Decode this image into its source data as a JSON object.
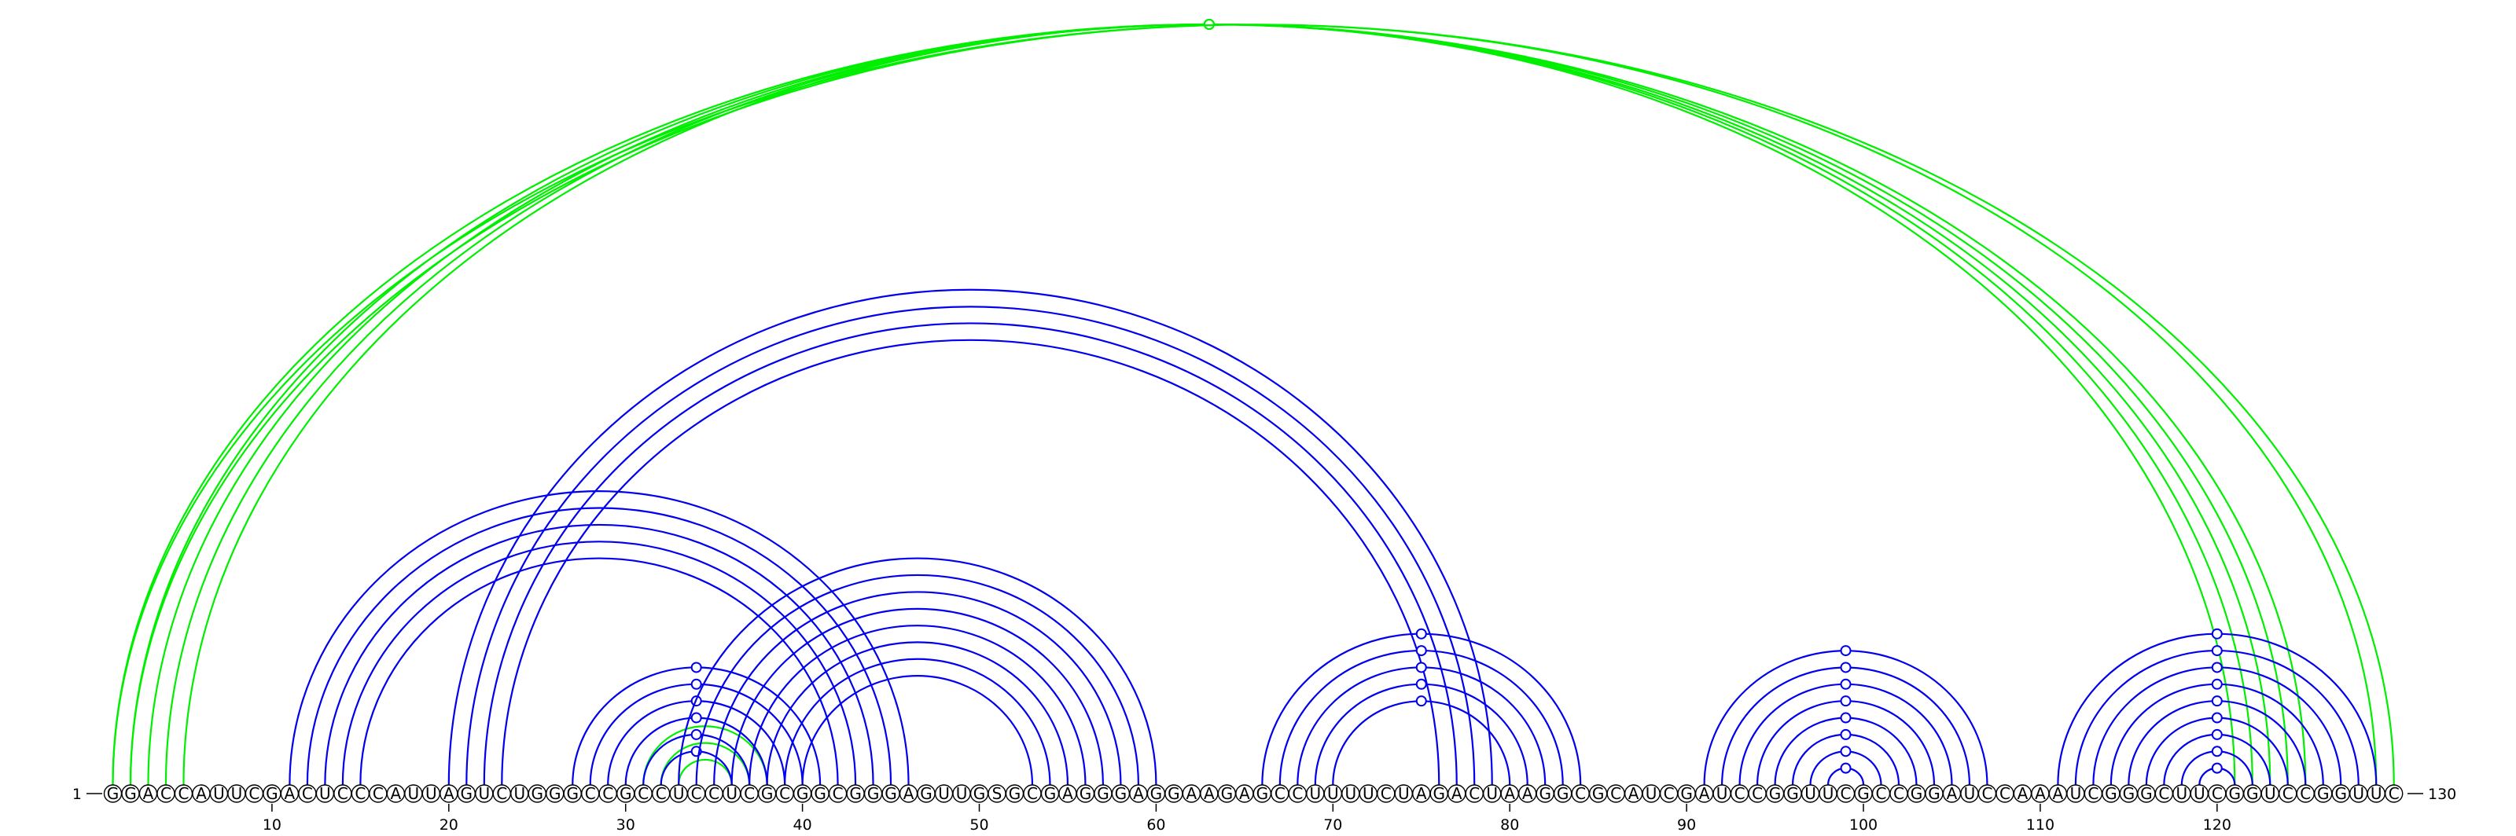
{
  "sequence": "GGACCAUUCGACUCCCAUUAGUCUGGGCCGCCUCCUCGCGGCGGGAGUUGSGCGAGGGAGGAAGAGCCUUUUCUAGACUAAGGCGCAUCGAUCCGGUUCGCCGGAUCCAAAUCGGGCUUCGGUCCGGUUC",
  "start_label": "1",
  "end_label": "130",
  "ticks": [
    10,
    20,
    30,
    40,
    50,
    60,
    70,
    80,
    90,
    100,
    110,
    120
  ],
  "colors": {
    "pairs_a": "#0000ee",
    "pairs_b": "#00ee00"
  },
  "arcs": [
    {
      "color": "pairs_b",
      "pairs": [
        [
          1,
          125
        ],
        [
          2,
          124
        ],
        [
          3,
          123
        ],
        [
          4,
          122
        ],
        [
          5,
          121
        ],
        [
          38,
          31
        ],
        [
          37,
          32
        ],
        [
          36,
          33
        ]
      ]
    },
    {
      "color": "pairs_b",
      "pairs": [
        [
          1,
          130
        ],
        [
          2,
          129
        ]
      ]
    },
    {
      "color": "pairs_a",
      "pairs": [
        [
          11,
          46
        ],
        [
          12,
          45
        ],
        [
          13,
          44
        ],
        [
          14,
          43
        ],
        [
          15,
          42
        ]
      ]
    },
    {
      "color": "pairs_a",
      "pairs": [
        [
          20,
          79
        ],
        [
          21,
          78
        ],
        [
          22,
          77
        ],
        [
          23,
          76
        ]
      ]
    },
    {
      "color": "pairs_a",
      "pairs": [
        [
          27,
          41
        ],
        [
          28,
          40
        ],
        [
          29,
          39
        ],
        [
          30,
          38
        ],
        [
          31,
          37
        ],
        [
          32,
          36
        ]
      ]
    },
    {
      "color": "pairs_a",
      "pairs": [
        [
          33,
          60
        ],
        [
          34,
          59
        ],
        [
          35,
          58
        ],
        [
          36,
          57
        ],
        [
          37,
          56
        ],
        [
          38,
          55
        ],
        [
          39,
          54
        ],
        [
          40,
          53
        ]
      ]
    },
    {
      "color": "pairs_a",
      "pairs": [
        [
          66,
          84
        ],
        [
          67,
          83
        ],
        [
          68,
          82
        ],
        [
          69,
          81
        ],
        [
          70,
          80
        ]
      ]
    },
    {
      "color": "pairs_a",
      "pairs": [
        [
          91,
          107
        ],
        [
          92,
          106
        ],
        [
          93,
          105
        ],
        [
          94,
          104
        ],
        [
          95,
          103
        ],
        [
          96,
          102
        ],
        [
          97,
          101
        ],
        [
          98,
          100
        ]
      ]
    },
    {
      "color": "pairs_a",
      "pairs": [
        [
          111,
          129
        ],
        [
          112,
          128
        ],
        [
          113,
          127
        ],
        [
          114,
          126
        ],
        [
          115,
          125
        ],
        [
          116,
          124
        ],
        [
          117,
          123
        ],
        [
          118,
          122
        ],
        [
          119,
          121
        ]
      ]
    }
  ]
}
